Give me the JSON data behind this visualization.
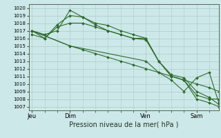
{
  "background_color": "#cce8e8",
  "grid_color": "#aacccc",
  "line_color": "#2d6a2d",
  "title": "Pression niveau de la mer( hPa )",
  "ylim": [
    1006.5,
    1020.5
  ],
  "yticks": [
    1007,
    1008,
    1009,
    1010,
    1011,
    1012,
    1013,
    1014,
    1015,
    1016,
    1017,
    1018,
    1019,
    1020
  ],
  "xtick_labels": [
    "Jeu",
    "Dim",
    "Ven",
    "Sam"
  ],
  "xtick_positions": [
    0,
    24,
    72,
    104
  ],
  "xlim": [
    -2,
    118
  ],
  "series1_x": [
    0,
    8,
    16,
    24,
    32,
    40,
    48,
    56,
    64,
    72,
    80,
    88,
    96,
    104,
    112,
    118
  ],
  "series1_y": [
    1017.0,
    1016.0,
    1017.5,
    1018.0,
    1018.0,
    1017.5,
    1017.0,
    1016.5,
    1016.0,
    1016.0,
    1013.0,
    1011.0,
    1010.5,
    1008.0,
    1007.5,
    1007.0
  ],
  "series2_x": [
    0,
    8,
    16,
    24,
    32,
    40,
    48,
    56,
    64,
    72,
    80,
    88,
    96,
    104,
    112,
    118
  ],
  "series2_y": [
    1016.5,
    1016.0,
    1017.8,
    1019.0,
    1018.8,
    1018.0,
    1017.7,
    1017.0,
    1016.5,
    1016.0,
    1013.0,
    1011.0,
    1010.5,
    1008.5,
    1008.0,
    1008.0
  ],
  "series3_x": [
    0,
    8,
    16,
    24,
    32,
    40,
    48,
    56,
    64,
    72,
    80,
    88,
    96,
    104,
    112,
    118
  ],
  "series3_y": [
    1017.0,
    1016.5,
    1017.0,
    1019.7,
    1018.8,
    1017.8,
    1017.0,
    1016.5,
    1016.0,
    1015.8,
    1013.0,
    1011.2,
    1010.8,
    1009.0,
    1008.2,
    1007.3
  ],
  "series4_x": [
    0,
    24,
    32,
    40,
    48,
    56,
    64,
    72,
    80,
    88,
    96,
    104,
    112,
    118
  ],
  "series4_y": [
    1017.0,
    1015.0,
    1014.5,
    1014.0,
    1013.5,
    1013.0,
    1012.5,
    1012.0,
    1011.5,
    1011.0,
    1010.5,
    1010.0,
    1009.5,
    1009.0
  ],
  "series5_x": [
    0,
    24,
    72,
    80,
    88,
    96,
    104,
    112,
    118
  ],
  "series5_y": [
    1017.0,
    1015.0,
    1013.0,
    1011.5,
    1010.5,
    1009.0,
    1010.8,
    1011.5,
    1007.5
  ],
  "marker_size": 2.0,
  "line_width": 0.8,
  "ytick_fontsize": 5.0,
  "xtick_fontsize": 6.0,
  "title_fontsize": 7.0
}
